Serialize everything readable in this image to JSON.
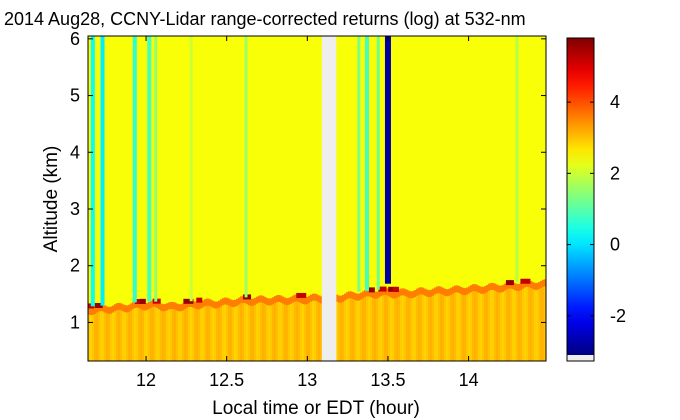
{
  "chart_data": {
    "type": "heatmap",
    "title": "2014 Aug28, CCNY-Lidar range-corrected returns (log) at 532-nm",
    "xlabel": "Local time or EDT (hour)",
    "ylabel": "Altitude (km)",
    "xlim": [
      11.64,
      14.48
    ],
    "ylim": [
      0.32,
      6.05
    ],
    "x_ticks": [
      "12",
      "12.5",
      "13",
      "13.5",
      "14"
    ],
    "y_ticks": [
      "1",
      "2",
      "3",
      "4",
      "5",
      "6"
    ],
    "colorbar": {
      "range": [
        -3.1,
        5.8
      ],
      "ticks": [
        "-2",
        "0",
        "2",
        "4"
      ],
      "colormap": "jet",
      "nan_color": "#eeeeee"
    },
    "data_gap_hours": [
      13.09,
      13.18
    ],
    "background_value": 2.4,
    "boundary_layer": {
      "description_values": {
        "near_surface_value": 3.0,
        "aerosol_top_value": 5.2
      },
      "top_altitude_km": [
        [
          11.65,
          1.28
        ],
        [
          11.75,
          1.3
        ],
        [
          11.85,
          1.32
        ],
        [
          11.95,
          1.36
        ],
        [
          12.05,
          1.37
        ],
        [
          12.15,
          1.33
        ],
        [
          12.3,
          1.38
        ],
        [
          12.45,
          1.4
        ],
        [
          12.6,
          1.44
        ],
        [
          12.75,
          1.45
        ],
        [
          12.9,
          1.46
        ],
        [
          13.05,
          1.48
        ],
        [
          13.2,
          1.5
        ],
        [
          13.35,
          1.55
        ],
        [
          13.45,
          1.58
        ],
        [
          13.6,
          1.57
        ],
        [
          13.75,
          1.6
        ],
        [
          13.9,
          1.62
        ],
        [
          14.05,
          1.65
        ],
        [
          14.2,
          1.68
        ],
        [
          14.35,
          1.72
        ],
        [
          14.48,
          1.73
        ]
      ]
    },
    "low_signal_streaks": [
      {
        "time": 11.67,
        "value": 0.3
      },
      {
        "time": 11.73,
        "value": 0.1
      },
      {
        "time": 11.93,
        "value": 0.6
      },
      {
        "time": 12.02,
        "value": 0.8
      },
      {
        "time": 12.06,
        "value": 1.5
      },
      {
        "time": 12.28,
        "value": 2.0
      },
      {
        "time": 12.62,
        "value": 1.6
      },
      {
        "time": 13.32,
        "value": 1.3
      },
      {
        "time": 13.37,
        "value": 0.8
      },
      {
        "time": 13.44,
        "value": 1.2
      },
      {
        "time": 13.5,
        "value": -2.8
      },
      {
        "time": 14.3,
        "value": 1.8
      }
    ]
  }
}
